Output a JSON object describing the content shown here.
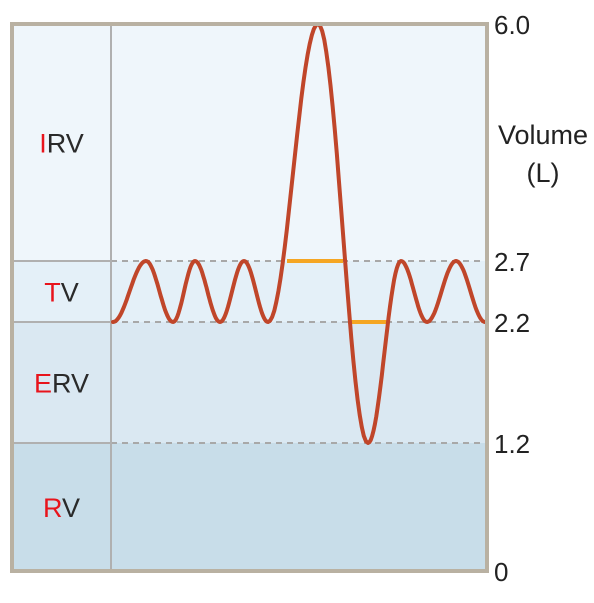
{
  "colors": {
    "frame": "#b9b1a2",
    "divider": "#b0b0b0",
    "dashed_line": "#a8a8a8",
    "trace": "#c0462a",
    "highlight": "#f5a623",
    "irv_fill": "#eff6fb",
    "tv_fill": "#e4f0f8",
    "erv_fill": "#dae8f2",
    "rv_fill": "#c8dde9",
    "first_letter": "#e8141c"
  },
  "bands": [
    {
      "key": "irv",
      "first": "I",
      "rest": "RV",
      "from": 2.7,
      "to": 6.0
    },
    {
      "key": "tv",
      "first": "T",
      "rest": "V",
      "from": 2.2,
      "to": 2.7
    },
    {
      "key": "erv",
      "first": "E",
      "rest": "RV",
      "from": 1.2,
      "to": 2.2
    },
    {
      "key": "rv",
      "first": "R",
      "rest": "V",
      "from": 0,
      "to": 1.2
    }
  ],
  "axis": {
    "title_line1": "Volume",
    "title_line2": "(L)",
    "ticks": [
      {
        "value": 6.0,
        "label": "6.0"
      },
      {
        "value": 2.7,
        "label": "2.7"
      },
      {
        "value": 2.2,
        "label": "2.2"
      },
      {
        "value": 1.2,
        "label": "1.2"
      },
      {
        "value": 0,
        "label": "0"
      }
    ]
  },
  "chart_data": {
    "type": "line",
    "ylim": [
      0,
      6.0
    ],
    "reference_lines": [
      2.7,
      2.2,
      1.2
    ],
    "series": [
      {
        "values": [
          2.2,
          2.7,
          2.2,
          2.7,
          2.2,
          2.7,
          2.2,
          6.0,
          1.2,
          2.7,
          2.2,
          2.7,
          2.2
        ]
      }
    ],
    "highlights": [
      {
        "level": 2.7,
        "span": "top of tidal breath to start of maximal inspiration"
      },
      {
        "level": 2.2,
        "span": "end of maximal expiration return to tidal baseline"
      }
    ]
  }
}
